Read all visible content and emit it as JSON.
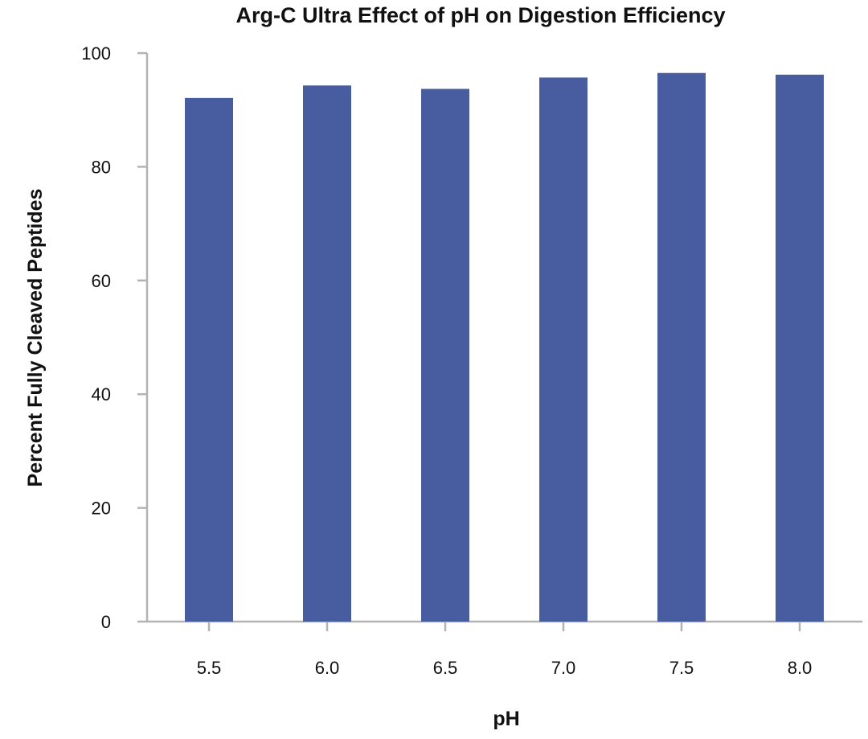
{
  "chart_data": {
    "type": "bar",
    "title": "Arg-C Ultra Effect of pH on Digestion Efficiency",
    "xlabel": "pH",
    "ylabel": "Percent Fully Cleaved Peptides",
    "categories": [
      "5.5",
      "6.0",
      "6.5",
      "7.0",
      "7.5",
      "8.0"
    ],
    "values": [
      92.1,
      94.3,
      93.7,
      95.7,
      96.5,
      96.2
    ],
    "ylim": [
      0,
      100
    ],
    "yticks": [
      "0",
      "20",
      "40",
      "60",
      "80",
      "100"
    ],
    "grid": false,
    "legend": "none",
    "bar_color": "#485da0",
    "axis_color": "#b3b3b3"
  }
}
